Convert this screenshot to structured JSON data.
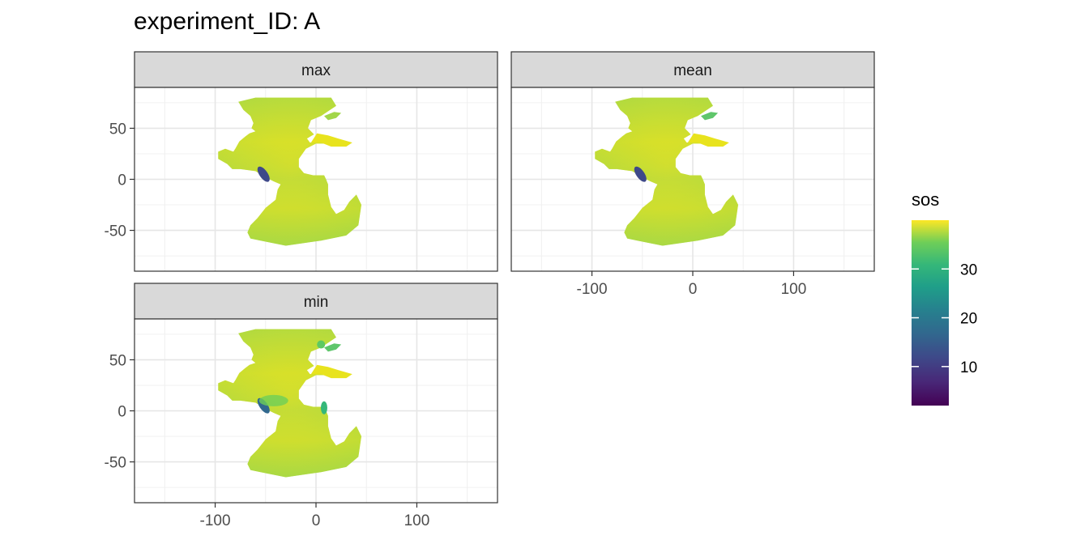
{
  "chart_data": {
    "type": "heatmap",
    "title": "experiment_ID: A",
    "xlabel": "",
    "ylabel": "",
    "xlim": [
      -180,
      180
    ],
    "ylim": [
      -90,
      90
    ],
    "x_ticks": [
      -100,
      0,
      100
    ],
    "y_ticks": [
      50,
      0,
      -50
    ],
    "grid": true,
    "facets": [
      {
        "label": "max",
        "variant": "max"
      },
      {
        "label": "mean",
        "variant": "mean"
      },
      {
        "label": "min",
        "variant": "min"
      }
    ],
    "legend": {
      "title": "sos",
      "position": "right",
      "colormap": "viridis",
      "range": [
        2,
        40
      ],
      "ticks": [
        10,
        20,
        30
      ]
    }
  }
}
